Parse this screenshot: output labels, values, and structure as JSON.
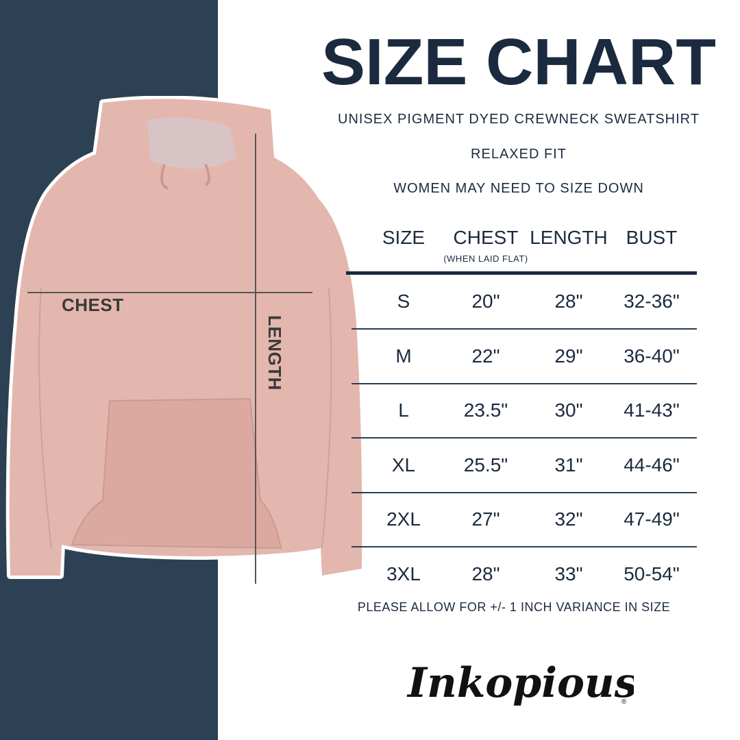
{
  "title": "SIZE CHART",
  "subtitle": "UNISEX PIGMENT DYED CREWNECK SWEATSHIRT",
  "fit": "RELAXED FIT",
  "advice": "WOMEN MAY NEED TO SIZE DOWN",
  "image_labels": {
    "chest": "CHEST",
    "length": "LENGTH"
  },
  "table": {
    "headers": [
      "SIZE",
      "CHEST",
      "LENGTH",
      "BUST"
    ],
    "chest_note": "(WHEN LAID FLAT)",
    "rows": [
      [
        "S",
        "20\"",
        "28\"",
        "32-36\""
      ],
      [
        "M",
        "22\"",
        "29\"",
        "36-40\""
      ],
      [
        "L",
        "23.5\"",
        "30\"",
        "41-43\""
      ],
      [
        "XL",
        "25.5\"",
        "31\"",
        "44-46\""
      ],
      [
        "2XL",
        "27\"",
        "32\"",
        "47-49\""
      ],
      [
        "3XL",
        "28\"",
        "33\"",
        "50-54\""
      ]
    ]
  },
  "footer_note": "PLEASE ALLOW FOR +/- 1 INCH VARIANCE IN SIZE",
  "brand": "Inkopious",
  "colors": {
    "navy": "#2c4153",
    "text": "#1b2a3f",
    "hoodie": "#e3b7ae"
  }
}
